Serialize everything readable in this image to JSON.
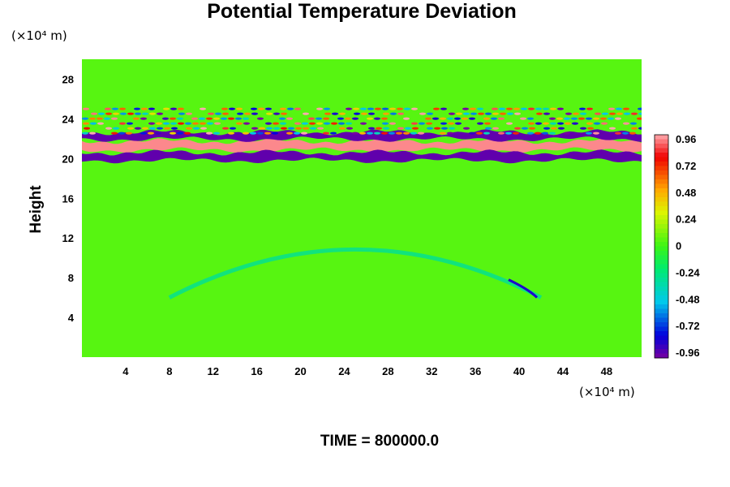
{
  "chart_data": {
    "type": "heatmap",
    "title": "Potential Temperature Deviation",
    "ylabel": "Height",
    "xlabel": "",
    "x_unit": "(×10⁴ m)",
    "y_unit": "(×10⁴ m)",
    "x_ticks": [
      4,
      8,
      12,
      16,
      20,
      24,
      28,
      32,
      36,
      40,
      44,
      48
    ],
    "y_ticks": [
      4,
      8,
      12,
      16,
      20,
      24,
      28
    ],
    "xlim": [
      0,
      51.2
    ],
    "ylim": [
      0,
      30
    ],
    "colorbar": {
      "ticks": [
        "0.96",
        "0.72",
        "0.48",
        "0.24",
        "0",
        "-0.24",
        "-0.48",
        "-0.72",
        "-0.96"
      ],
      "range": [
        -1.0,
        1.0
      ]
    },
    "background_value": 0.05,
    "features": [
      {
        "kind": "band",
        "name": "positive-band",
        "y_center": 21.3,
        "thickness": 0.9,
        "value": 0.96
      },
      {
        "kind": "band",
        "name": "negative-band-lower",
        "y_center": 20.2,
        "thickness": 0.8,
        "value": -0.96
      },
      {
        "kind": "band",
        "name": "negative-band-upper",
        "y_center": 22.3,
        "thickness": 0.7,
        "value": -0.96
      },
      {
        "kind": "wave-layer",
        "name": "upper-wave-field",
        "y_min": 22.5,
        "y_max": 25.0,
        "amplitude": 0.8
      },
      {
        "kind": "arc",
        "name": "lower-arc",
        "x_from": 8,
        "x_to": 42,
        "y_base": 6,
        "y_top": 12,
        "value": -0.4
      }
    ],
    "annotation": "TIME = 800000.0"
  }
}
